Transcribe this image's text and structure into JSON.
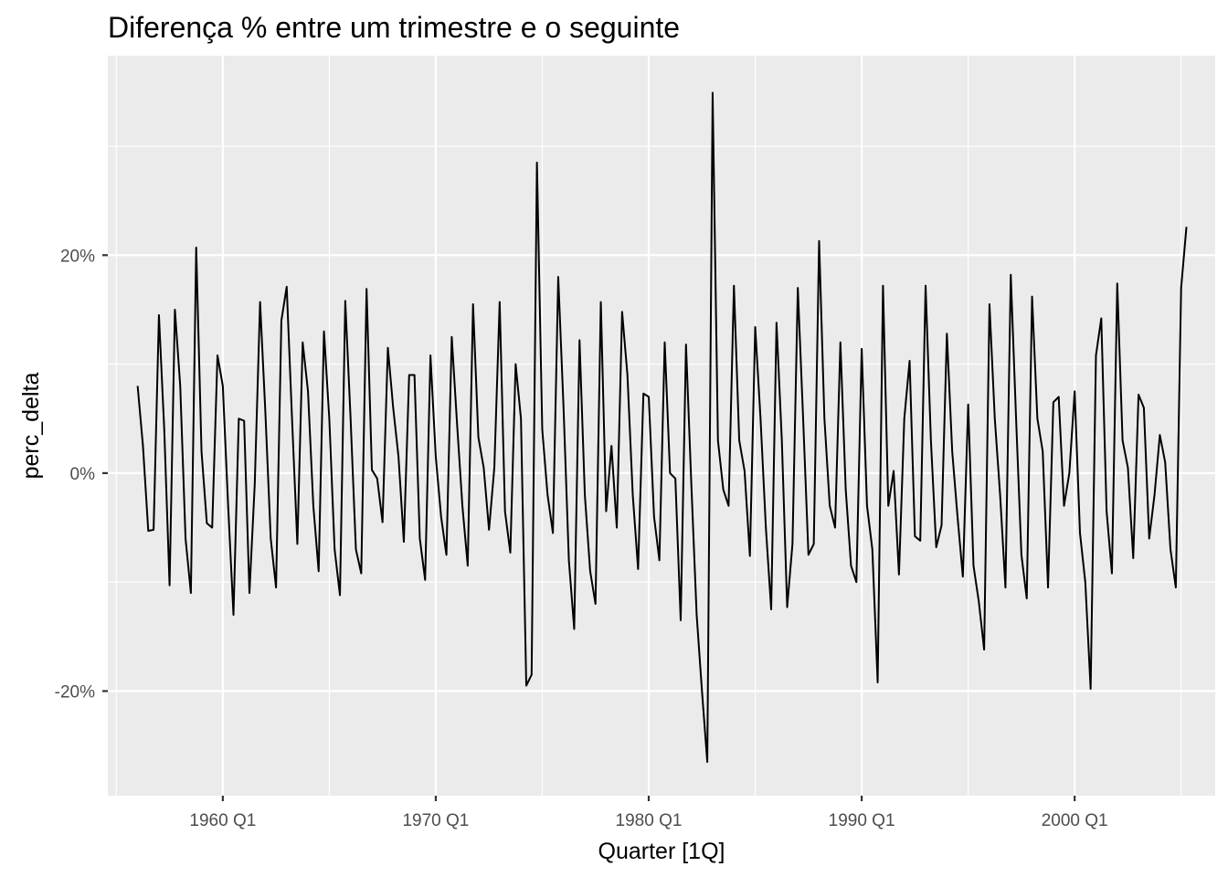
{
  "chart_data": {
    "type": "line",
    "title": "Diferença % entre um trimestre e o seguinte",
    "xlabel": "Quarter [1Q]",
    "ylabel": "perc_delta",
    "x_ticks": [
      {
        "label": "1960 Q1",
        "value": 1960.0
      },
      {
        "label": "1970 Q1",
        "value": 1970.0
      },
      {
        "label": "1980 Q1",
        "value": 1980.0
      },
      {
        "label": "1990 Q1",
        "value": 1990.0
      },
      {
        "label": "2000 Q1",
        "value": 2000.0
      }
    ],
    "y_ticks": [
      {
        "label": "20%",
        "value": 20
      },
      {
        "label": "0%",
        "value": 0
      },
      {
        "label": "-20%",
        "value": -20
      }
    ],
    "xlim": [
      1954.6,
      2006.6
    ],
    "ylim": [
      -29.6,
      38.3
    ],
    "grid": true,
    "background": "#ebebeb",
    "grid_color": "#ffffff",
    "line_color": "#000000",
    "x_start": 1956.0,
    "x_step": 0.25,
    "series": [
      {
        "name": "",
        "values": [
          8.0,
          2.5,
          -5.3,
          -5.2,
          14.5,
          4.0,
          -10.3,
          15.0,
          8.0,
          -6.0,
          -11.0,
          20.7,
          2.0,
          -4.6,
          -5.0,
          10.8,
          8.0,
          -3.0,
          -13.0,
          5.0,
          4.8,
          -11.0,
          -1.0,
          15.7,
          5.5,
          -6.0,
          -10.5,
          14.0,
          17.1,
          5.0,
          -6.5,
          12.0,
          7.5,
          -3.0,
          -9.0,
          13.0,
          5.0,
          -7.0,
          -11.2,
          15.8,
          5.0,
          -7.0,
          -9.2,
          16.9,
          0.3,
          -0.5,
          -4.5,
          11.5,
          6.0,
          1.5,
          -6.3,
          9.0,
          9.0,
          -6.0,
          -9.8,
          10.8,
          1.5,
          -4.0,
          -7.5,
          12.5,
          4.5,
          -3.0,
          -8.5,
          15.5,
          3.3,
          0.5,
          -5.2,
          0.5,
          15.7,
          -3.5,
          -7.3,
          10.0,
          5.0,
          -19.5,
          -18.5,
          28.5,
          4.0,
          -2.0,
          -5.5,
          18.0,
          6.0,
          -8.0,
          -14.3,
          12.2,
          -2.0,
          -9.0,
          -12.0,
          15.7,
          -3.5,
          2.5,
          -5.0,
          14.8,
          9.0,
          -2.0,
          -8.8,
          7.3,
          7.0,
          -4.0,
          -8.0,
          12.0,
          0.0,
          -0.5,
          -13.5,
          11.8,
          -1.0,
          -13.0,
          -20.0,
          -26.5,
          34.9,
          3.0,
          -1.5,
          -3.0,
          17.2,
          3.0,
          0.2,
          -7.6,
          13.4,
          5.0,
          -5.0,
          -12.5,
          13.8,
          3.0,
          -12.3,
          -6.5,
          17.0,
          5.0,
          -7.5,
          -6.5,
          21.3,
          5.0,
          -3.0,
          -5.0,
          12.0,
          -1.5,
          -8.5,
          -10.0,
          11.4,
          -3.0,
          -7.0,
          -19.2,
          17.2,
          -3.0,
          0.2,
          -9.3,
          5.0,
          10.3,
          -5.8,
          -6.2,
          17.2,
          3.0,
          -6.8,
          -4.8,
          12.8,
          2.0,
          -4.0,
          -9.5,
          6.3,
          -8.5,
          -11.8,
          -16.2,
          15.5,
          5.0,
          -2.0,
          -10.5,
          18.2,
          5.0,
          -7.5,
          -11.5,
          16.2,
          5.0,
          2.0,
          -10.5,
          6.5,
          7.0,
          -3.0,
          0.0,
          7.5,
          -5.5,
          -10.0,
          -19.8,
          10.8,
          14.2,
          -3.5,
          -9.2,
          17.4,
          3.0,
          0.5,
          -7.8,
          7.2,
          6.0,
          -6.0,
          -2.0,
          3.5,
          1.0,
          -7.0,
          -10.5,
          17.0,
          22.6
        ]
      }
    ]
  }
}
